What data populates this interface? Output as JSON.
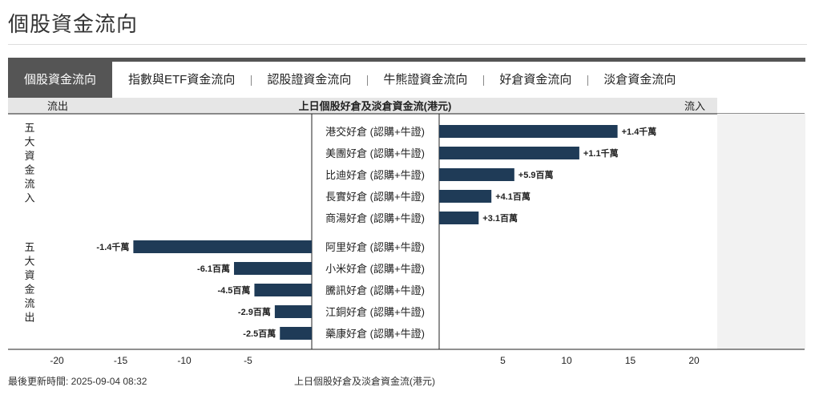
{
  "page": {
    "title": "個股資金流向"
  },
  "tabs": [
    {
      "label": "個股資金流向",
      "active": true
    },
    {
      "label": "指數與ETF資金流向",
      "active": false
    },
    {
      "label": "認股證資金流向",
      "active": false
    },
    {
      "label": "牛熊證資金流向",
      "active": false
    },
    {
      "label": "好倉資金流向",
      "active": false
    },
    {
      "label": "淡倉資金流向",
      "active": false
    }
  ],
  "chart_data": {
    "type": "bar",
    "orientation": "horizontal",
    "title": "上日個股好倉及淡倉資金流(港元)",
    "left_header": "流出",
    "right_header": "流入",
    "group_labels": [
      "五大資金流入",
      "五大資金流出"
    ],
    "x_ticks": [
      -20,
      -15,
      -10,
      -5,
      5,
      10,
      15,
      20
    ],
    "xlim": [
      -20,
      20
    ],
    "bar_color": "#1f3b57",
    "inflow": [
      {
        "name": "港交好倉 (認購+牛證)",
        "value": 14,
        "label": "+1.4千萬"
      },
      {
        "name": "美團好倉 (認購+牛證)",
        "value": 11,
        "label": "+1.1千萬"
      },
      {
        "name": "比迪好倉 (認購+牛證)",
        "value": 5.9,
        "label": "+5.9百萬"
      },
      {
        "name": "長實好倉 (認購+牛證)",
        "value": 4.1,
        "label": "+4.1百萬"
      },
      {
        "name": "商湯好倉 (認購+牛證)",
        "value": 3.1,
        "label": "+3.1百萬"
      }
    ],
    "outflow": [
      {
        "name": "阿里好倉 (認購+牛證)",
        "value": -14,
        "label": "-1.4千萬"
      },
      {
        "name": "小米好倉 (認購+牛證)",
        "value": -6.1,
        "label": "-6.1百萬"
      },
      {
        "name": "騰訊好倉 (認購+牛證)",
        "value": -4.5,
        "label": "-4.5百萬"
      },
      {
        "name": "江銅好倉 (認購+牛證)",
        "value": -2.9,
        "label": "-2.9百萬"
      },
      {
        "name": "藥康好倉 (認購+牛證)",
        "value": -2.5,
        "label": "-2.5百萬"
      }
    ]
  },
  "footer": {
    "updated": "最後更新時間: 2025-09-04 08:32",
    "caption": "上日個股好倉及淡倉資金流(港元)"
  }
}
